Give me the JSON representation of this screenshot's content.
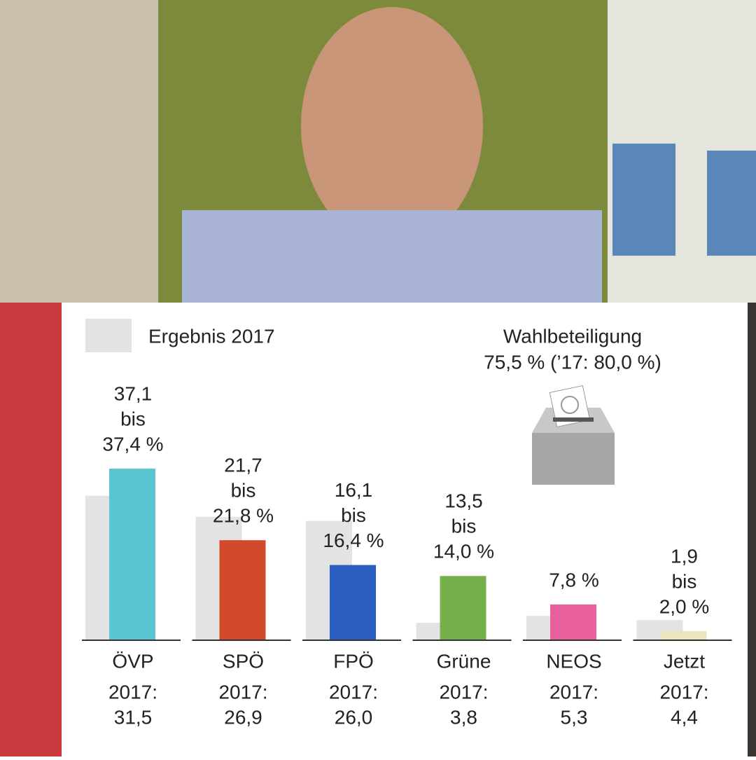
{
  "chart_data": {
    "type": "bar",
    "categories": [
      "ÖVP",
      "SPÖ",
      "FPÖ",
      "Grüne",
      "NEOS",
      "Jetzt"
    ],
    "series": [
      {
        "name": "Ergebnis 2017",
        "color": "#e3e3e3",
        "values": [
          31.5,
          26.9,
          26.0,
          3.8,
          5.3,
          4.4
        ],
        "value_labels": [
          "31,5",
          "26,9",
          "26,0",
          "3,8",
          "5,3",
          "4,4"
        ]
      },
      {
        "colors": [
          "#5bc4d1",
          "#d14a2a",
          "#2a5fbf",
          "#76b04a",
          "#e9609f",
          "#ece3c0"
        ],
        "values": [
          37.4,
          21.8,
          16.4,
          14.0,
          7.8,
          2.0
        ],
        "value_labels": [
          [
            "37,1",
            "bis",
            "37,4 %"
          ],
          [
            "21,7",
            "bis",
            "21,8 %"
          ],
          [
            "16,1",
            "bis",
            "16,4 %"
          ],
          [
            "13,5",
            "bis",
            "14,0 %"
          ],
          [
            "7,8 %"
          ],
          [
            "1,9",
            "bis",
            "2,0 %"
          ]
        ]
      }
    ],
    "previous_prefix": "2017:",
    "turnout_title": "Wahlbeteiligung",
    "turnout_text": "75,5 % (’17: 80,0 %)",
    "ylim": [
      0,
      40
    ]
  }
}
